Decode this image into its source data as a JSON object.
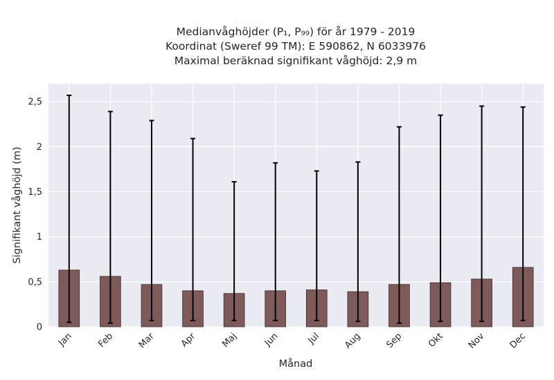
{
  "chart_data": {
    "type": "bar",
    "title_lines": [
      "Medianvåghöjder (P₁, P₉₉) för år 1979 - 2019",
      "Koordinat (Sweref 99 TM): E 590862, N 6033976",
      "Maximal beräknad signifikant våghöjd: 2,9 m"
    ],
    "xlabel": "Månad",
    "ylabel": "Signifikant våghöjd (m)",
    "categories": [
      "Jan",
      "Feb",
      "Mar",
      "Apr",
      "Maj",
      "Jun",
      "Jul",
      "Aug",
      "Sep",
      "Okt",
      "Nov",
      "Dec"
    ],
    "values": [
      0.63,
      0.56,
      0.47,
      0.4,
      0.37,
      0.4,
      0.41,
      0.39,
      0.47,
      0.49,
      0.53,
      0.66
    ],
    "error_low": [
      0.05,
      0.04,
      0.07,
      0.07,
      0.07,
      0.07,
      0.07,
      0.06,
      0.04,
      0.06,
      0.06,
      0.07
    ],
    "error_high": [
      2.57,
      2.39,
      2.29,
      2.09,
      1.61,
      1.82,
      1.73,
      1.83,
      2.22,
      2.35,
      2.45,
      2.44
    ],
    "ylim": [
      0,
      2.7
    ],
    "yticks": [
      0,
      0.5,
      1,
      1.5,
      2,
      2.5
    ],
    "ytick_labels": [
      "0",
      "0,5",
      "1",
      "1,5",
      "2",
      "2,5"
    ],
    "grid": true,
    "colors": {
      "bar_fill": "#7f5a5a",
      "bar_edge": "#3a2a2a",
      "error_bar": "#000000",
      "plot_background": "#eaeaf2",
      "grid": "#ffffff"
    }
  }
}
